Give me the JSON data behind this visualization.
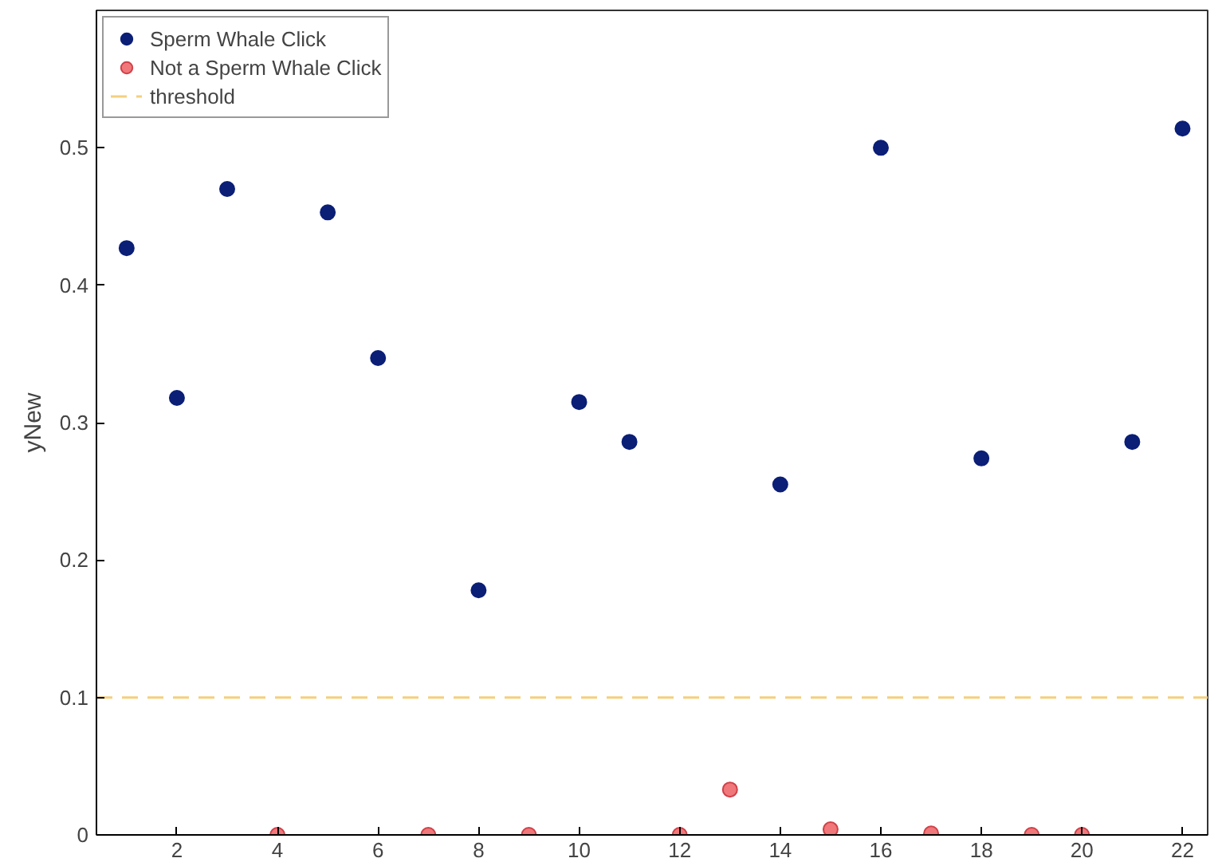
{
  "chart_data": {
    "type": "scatter",
    "ylabel": "yNew",
    "xlim": [
      0.4,
      22.5
    ],
    "ylim": [
      0,
      0.6
    ],
    "xticks": [
      2,
      4,
      6,
      8,
      10,
      12,
      14,
      16,
      18,
      20,
      22
    ],
    "yticks": [
      0,
      0.1,
      0.2,
      0.3,
      0.4,
      0.5
    ],
    "grid": false,
    "legend": "top left",
    "marker": "circle",
    "series": [
      {
        "name": "Sperm Whale Click",
        "color": "#0b1f77",
        "x": [
          1,
          2,
          3,
          5,
          6,
          8,
          10,
          11,
          14,
          16,
          18,
          21,
          22
        ],
        "values": [
          0.427,
          0.318,
          0.47,
          0.453,
          0.347,
          0.178,
          0.315,
          0.286,
          0.255,
          0.5,
          0.274,
          0.286,
          0.514
        ]
      },
      {
        "name": "Not a Sperm Whale Click",
        "color": "#f0777a",
        "x": [
          4,
          7,
          9,
          12,
          13,
          15,
          17,
          19,
          20
        ],
        "values": [
          0,
          0,
          0,
          0,
          0.033,
          0.004,
          0.001,
          0,
          0
        ]
      }
    ],
    "ref_lines": [
      {
        "axis": "y",
        "value": 0.1,
        "label": "threshold",
        "color": "#f5cf7e",
        "line_style": "dashed"
      }
    ]
  }
}
